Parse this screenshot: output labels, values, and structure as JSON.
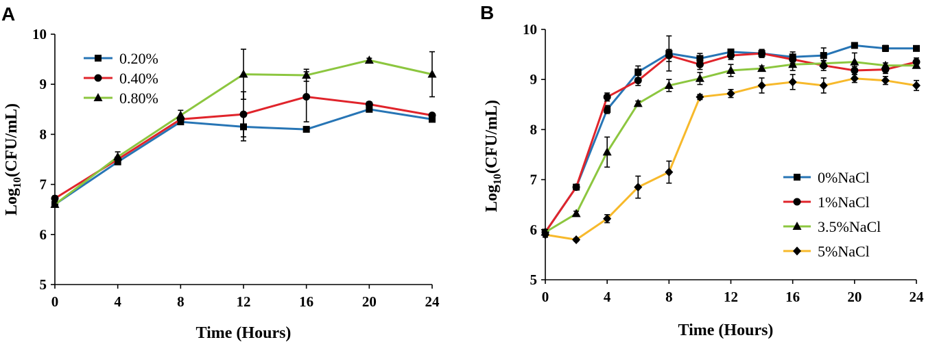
{
  "chart_data": [
    {
      "panel": "A",
      "type": "line",
      "title": "",
      "xlabel": "Time (Hours)",
      "ylabel_main": "Log",
      "ylabel_sub": "10",
      "ylabel_rest": "(CFU/mL)",
      "xlim": [
        0,
        24
      ],
      "ylim": [
        5,
        10
      ],
      "xticks": [
        0,
        4,
        8,
        12,
        16,
        20,
        24
      ],
      "yticks": [
        5,
        6,
        7,
        8,
        9,
        10
      ],
      "legend_position": "top-left",
      "series": [
        {
          "name": "0.20%",
          "color": "#2775b5",
          "marker": "square",
          "x": [
            0,
            4,
            8,
            12,
            16,
            20,
            24
          ],
          "values": [
            6.6,
            7.45,
            8.25,
            8.15,
            8.1,
            8.5,
            8.3
          ],
          "errors": [
            0.05,
            0.05,
            0.05,
            0.28,
            0.05,
            0.05,
            0.04
          ]
        },
        {
          "name": "0.40%",
          "color": "#e0242b",
          "marker": "circle",
          "x": [
            0,
            4,
            8,
            12,
            16,
            20,
            24
          ],
          "values": [
            6.72,
            7.5,
            8.3,
            8.4,
            8.75,
            8.6,
            8.38
          ],
          "errors": [
            0.05,
            0.05,
            0.05,
            0.45,
            0.5,
            0.05,
            0.04
          ]
        },
        {
          "name": "0.80%",
          "color": "#8cc63f",
          "marker": "triangle",
          "x": [
            0,
            4,
            8,
            12,
            16,
            20,
            24
          ],
          "values": [
            6.6,
            7.55,
            8.38,
            9.2,
            9.18,
            9.48,
            9.2
          ],
          "errors": [
            0.05,
            0.1,
            0.1,
            0.5,
            0.12,
            0.04,
            0.45
          ]
        }
      ]
    },
    {
      "panel": "B",
      "type": "line",
      "title": "",
      "xlabel": "Time (Hours)",
      "ylabel_main": "Log",
      "ylabel_sub": "10",
      "ylabel_rest": "(CFU/mL)",
      "xlim": [
        0,
        24
      ],
      "ylim": [
        5,
        10
      ],
      "xticks": [
        0,
        4,
        8,
        12,
        16,
        20,
        24
      ],
      "yticks": [
        5,
        6,
        7,
        8,
        9,
        10
      ],
      "legend_position": "bottom-right",
      "series": [
        {
          "name": "0%NaCl",
          "color": "#2775b5",
          "marker": "square",
          "x": [
            0,
            2,
            4,
            6,
            8,
            10,
            12,
            14,
            16,
            18,
            20,
            22,
            24
          ],
          "values": [
            5.95,
            6.85,
            8.4,
            9.15,
            9.52,
            9.42,
            9.55,
            9.52,
            9.45,
            9.48,
            9.68,
            9.62,
            9.62
          ],
          "errors": [
            0.05,
            0.05,
            0.08,
            0.12,
            0.35,
            0.1,
            0.05,
            0.08,
            0.1,
            0.15,
            0.04,
            0.06,
            0.04
          ]
        },
        {
          "name": "1%NaCl",
          "color": "#e0242b",
          "marker": "circle",
          "x": [
            0,
            2,
            4,
            6,
            8,
            10,
            12,
            14,
            16,
            18,
            20,
            22,
            24
          ],
          "values": [
            5.95,
            6.85,
            8.65,
            8.98,
            9.48,
            9.3,
            9.48,
            9.52,
            9.4,
            9.28,
            9.18,
            9.2,
            9.35
          ],
          "errors": [
            0.05,
            0.05,
            0.08,
            0.1,
            0.12,
            0.1,
            0.08,
            0.08,
            0.08,
            0.1,
            0.08,
            0.08,
            0.08
          ]
        },
        {
          "name": "3.5%NaCl",
          "color": "#8cc63f",
          "marker": "triangle",
          "x": [
            0,
            2,
            4,
            6,
            8,
            10,
            12,
            14,
            16,
            18,
            20,
            22,
            24
          ],
          "values": [
            5.95,
            6.32,
            7.55,
            8.52,
            8.88,
            9.02,
            9.18,
            9.22,
            9.3,
            9.32,
            9.35,
            9.28,
            9.28
          ],
          "errors": [
            0.05,
            0.05,
            0.3,
            0.05,
            0.12,
            0.12,
            0.12,
            0.05,
            0.12,
            0.05,
            0.18,
            0.05,
            0.05
          ]
        },
        {
          "name": "5%NaCl",
          "color": "#f7b92b",
          "marker": "diamond",
          "x": [
            0,
            2,
            4,
            6,
            8,
            10,
            12,
            14,
            16,
            18,
            20,
            22,
            24
          ],
          "values": [
            5.9,
            5.8,
            6.22,
            6.85,
            7.15,
            8.65,
            8.72,
            8.88,
            8.95,
            8.88,
            9.02,
            8.98,
            8.88
          ],
          "errors": [
            0.05,
            0.03,
            0.08,
            0.22,
            0.22,
            0.05,
            0.08,
            0.15,
            0.15,
            0.15,
            0.08,
            0.08,
            0.1
          ]
        }
      ]
    }
  ]
}
